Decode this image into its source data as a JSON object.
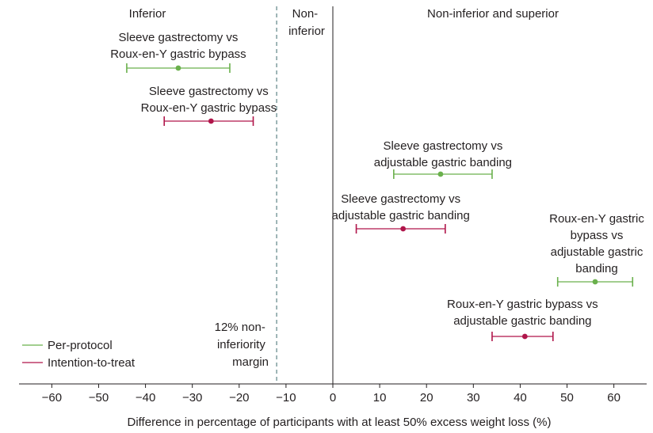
{
  "chart_data": {
    "type": "forest",
    "xlabel": "Difference in percentage of participants with at least 50% excess weight loss (%)",
    "xlim": [
      -67,
      67
    ],
    "xticks": [
      -60,
      -50,
      -40,
      -30,
      -20,
      -10,
      0,
      10,
      20,
      30,
      40,
      50,
      60
    ],
    "xtick_labels": [
      "−60",
      "−50",
      "−40",
      "−30",
      "−20",
      "−10",
      "0",
      "10",
      "20",
      "30",
      "40",
      "50",
      "60"
    ],
    "reference_line": 0,
    "margin_line": -12,
    "margin_label": [
      "12% non-",
      "inferiority",
      "margin"
    ],
    "regions": {
      "inferior": "Inferior",
      "non_inferior": [
        "Non-",
        "inferior"
      ],
      "superior": "Non-inferior and superior"
    },
    "series": [
      {
        "name": "Per-protocol",
        "color": "#6ab04c"
      },
      {
        "name": "Intention-to-treat",
        "color": "#b0154a"
      }
    ],
    "comparisons": [
      {
        "series": 0,
        "estimate": -33,
        "lower": -44,
        "upper": -22,
        "label": [
          "Sleeve gastrectomy vs",
          "Roux-en-Y gastric bypass"
        ]
      },
      {
        "series": 1,
        "estimate": -26,
        "lower": -36,
        "upper": -17,
        "label": [
          "Sleeve gastrectomy vs",
          "Roux-en-Y gastric bypass"
        ]
      },
      {
        "series": 0,
        "estimate": 23,
        "lower": 13,
        "upper": 34,
        "label": [
          "Sleeve gastrectomy vs",
          "adjustable gastric banding"
        ]
      },
      {
        "series": 1,
        "estimate": 15,
        "lower": 5,
        "upper": 24,
        "label": [
          "Sleeve gastrectomy vs",
          "adjustable gastric banding"
        ]
      },
      {
        "series": 0,
        "estimate": 56,
        "lower": 48,
        "upper": 64,
        "label": [
          "Roux-en-Y gastric",
          "bypass vs",
          "adjustable gastric",
          "banding"
        ]
      },
      {
        "series": 1,
        "estimate": 41,
        "lower": 34,
        "upper": 47,
        "label": [
          "Roux-en-Y gastric bypass vs",
          "adjustable gastric banding"
        ]
      }
    ]
  }
}
